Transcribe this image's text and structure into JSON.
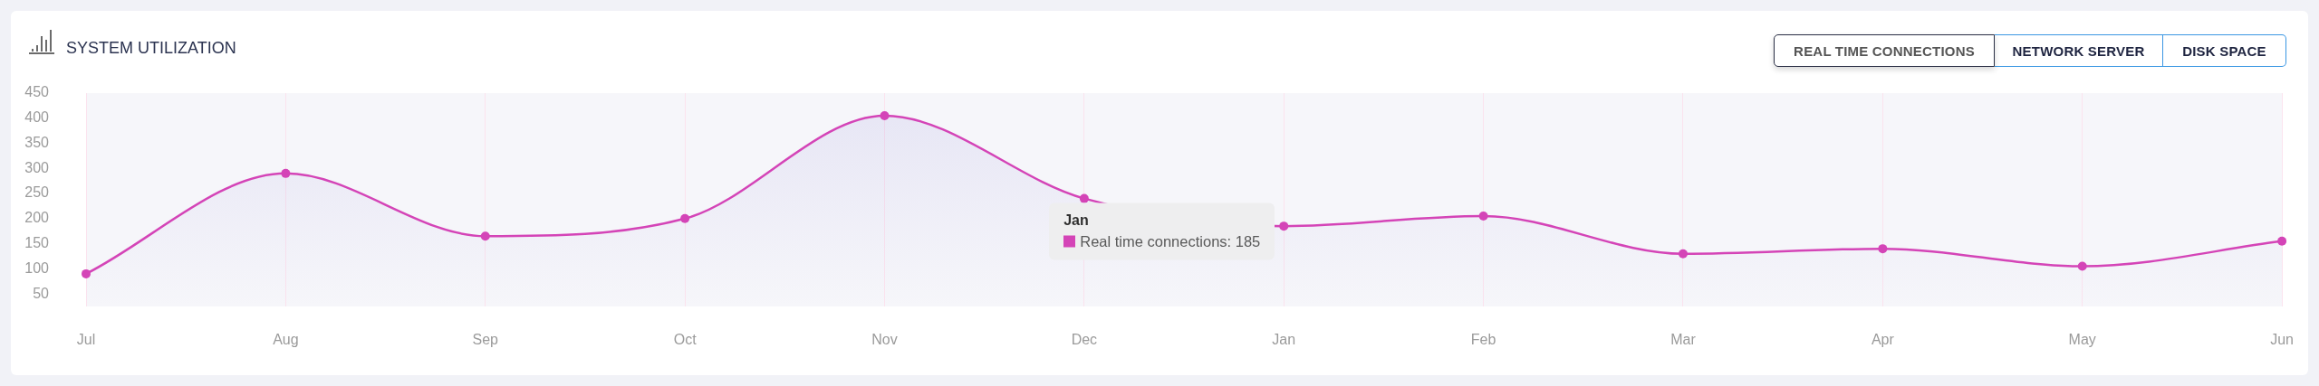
{
  "chart_data": {
    "type": "area",
    "title": "SYSTEM UTILIZATION",
    "categories": [
      "Jul",
      "Aug",
      "Sep",
      "Oct",
      "Nov",
      "Dec",
      "Jan",
      "Feb",
      "Mar",
      "Apr",
      "May",
      "Jun"
    ],
    "series": [
      {
        "color": "#d444b7",
        "values": [
          90,
          290,
          165,
          200,
          405,
          240,
          185,
          205,
          130,
          140,
          105,
          155
        ]
      }
    ],
    "ylim": [
      25,
      450
    ],
    "yticks": [
      50,
      100,
      150,
      200,
      250,
      300,
      350,
      400,
      450
    ],
    "grid": "x",
    "marker": "circle",
    "annotations": [
      "Jan",
      {
        "text": "Real time connections: 185",
        "x": "Jan",
        "y": 185
      },
      "REAL TIME CONNECTIONS",
      "NETWORK SERVER",
      "DISK SPACE"
    ]
  }
}
